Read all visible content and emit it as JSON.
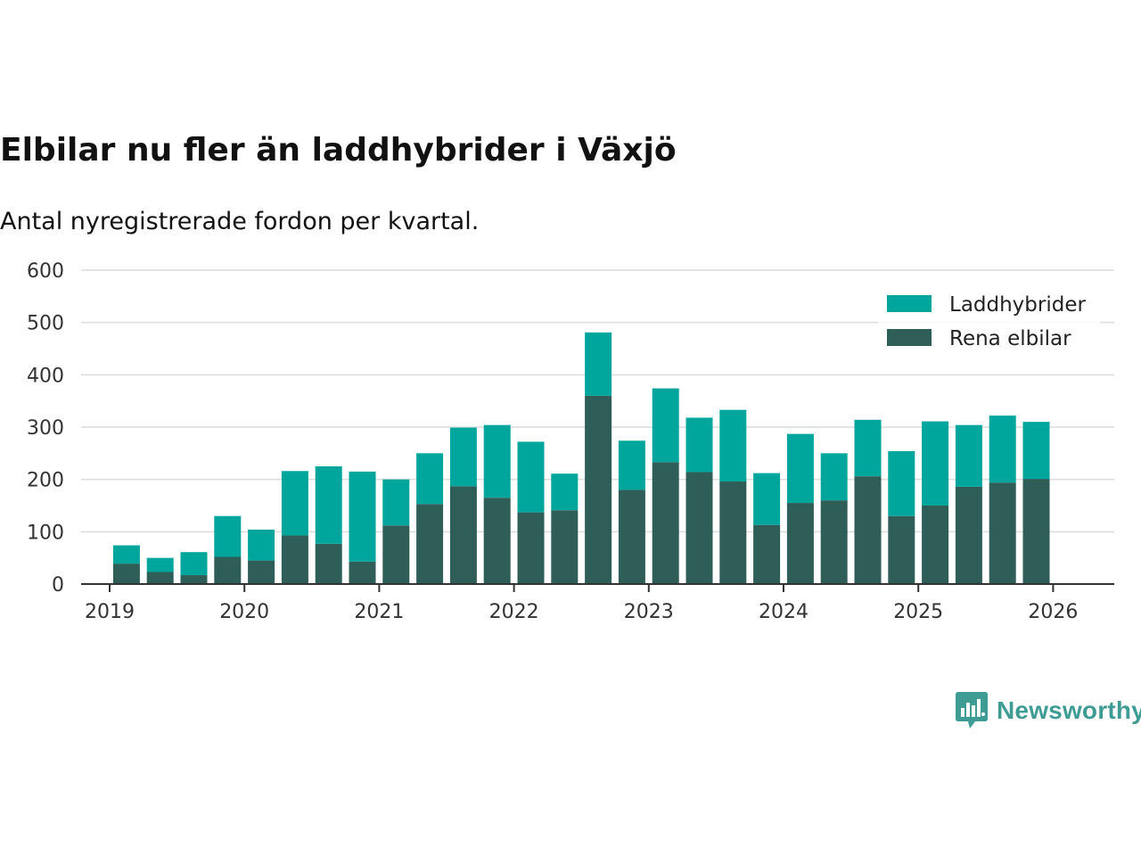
{
  "title": "Elbilar nu fler än laddhybrider i Växjö",
  "subtitle": "Antal nyregistrerade fordon per kvartal.",
  "brand": {
    "name": "Newsworthy"
  },
  "colors": {
    "laddhybrider": "#00a69c",
    "rena_elbilar": "#2f5d57",
    "grid": "#dcdcdc",
    "axis": "#333333",
    "brand": "#3f9c95"
  },
  "chart_data": {
    "type": "bar",
    "stacked": true,
    "title": "Elbilar nu fler än laddhybrider i Växjö",
    "subtitle": "Antal nyregistrerade fordon per kvartal.",
    "xlabel": "",
    "ylabel": "",
    "ylim": [
      0,
      600
    ],
    "yticks": [
      0,
      100,
      200,
      300,
      400,
      500,
      600
    ],
    "xticks": [
      "2019",
      "2020",
      "2021",
      "2022",
      "2023",
      "2024",
      "2025",
      "2026"
    ],
    "legend_position": "top-right",
    "grid": true,
    "categories": [
      "2019 Q2",
      "2019 Q3",
      "2019 Q4",
      "2020 Q1",
      "2020 Q2",
      "2020 Q3",
      "2020 Q4",
      "2021 Q1",
      "2021 Q2",
      "2021 Q3",
      "2021 Q4",
      "2022 Q1",
      "2022 Q2",
      "2022 Q3",
      "2022 Q4",
      "2023 Q1",
      "2023 Q2",
      "2023 Q3",
      "2023 Q4",
      "2024 Q1",
      "2024 Q2",
      "2024 Q3",
      "2024 Q4",
      "2025 Q1",
      "2025 Q2",
      "2025 Q3",
      "2025 Q4",
      "2026 Q1"
    ],
    "series": [
      {
        "name": "Rena elbilar",
        "values": [
          39,
          23,
          17,
          52,
          45,
          93,
          77,
          43,
          112,
          153,
          187,
          165,
          137,
          141,
          360,
          180,
          233,
          214,
          196,
          113,
          155,
          160,
          206,
          130,
          150,
          186,
          194,
          201
        ]
      },
      {
        "name": "Laddhybrider",
        "values": [
          35,
          27,
          44,
          78,
          59,
          123,
          148,
          172,
          88,
          97,
          112,
          139,
          135,
          70,
          121,
          94,
          141,
          104,
          137,
          99,
          132,
          90,
          108,
          124,
          161,
          118,
          128,
          109
        ]
      }
    ]
  }
}
